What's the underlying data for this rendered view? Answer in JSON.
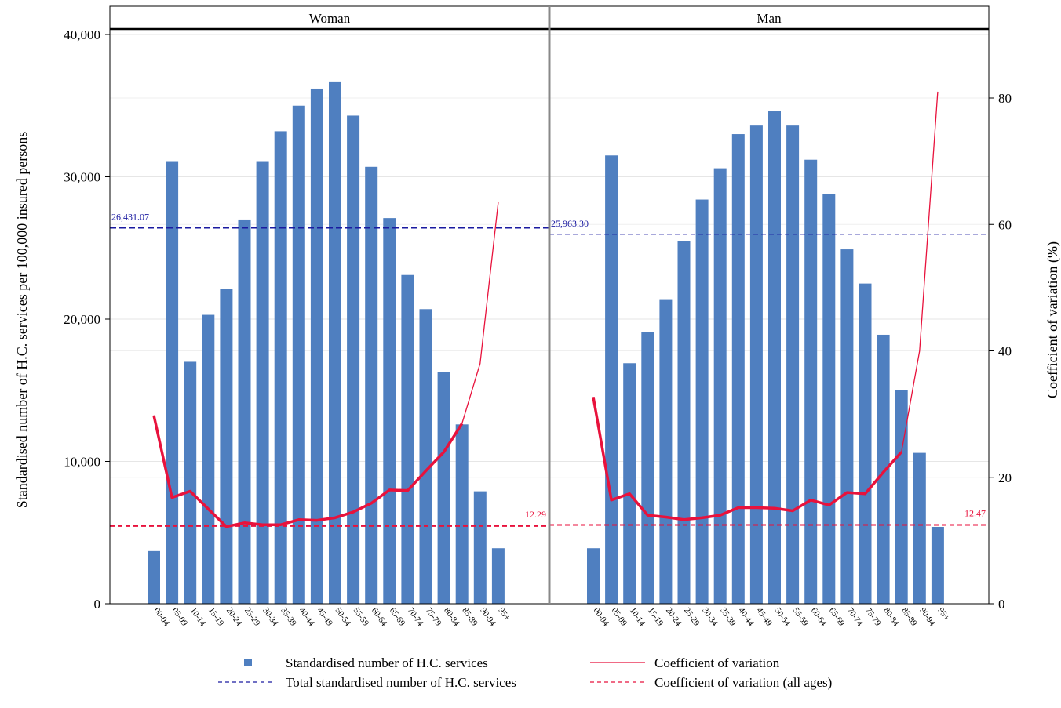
{
  "chart_data": {
    "type": "bar",
    "panels": [
      "Woman",
      "Man"
    ],
    "categories": [
      "00-04",
      "05-09",
      "10-14",
      "15-19",
      "20-24",
      "25-29",
      "30-34",
      "35-39",
      "40-44",
      "45-49",
      "50-54",
      "55-59",
      "60-64",
      "65-69",
      "70-74",
      "75-79",
      "80-84",
      "85-89",
      "90-94",
      "95+"
    ],
    "y_left": {
      "label": "Standardised number of H.C. services per 100,000 insured persons",
      "lim": [
        0,
        40000
      ],
      "ticks": [
        0,
        10000,
        20000,
        30000,
        40000
      ],
      "tick_labels": [
        "0",
        "10,000",
        "20,000",
        "30,000",
        "40,000"
      ]
    },
    "y_right": {
      "label": "Coefficient of variation (%)",
      "lim": [
        0,
        90
      ],
      "ticks": [
        0,
        20,
        40,
        60,
        80
      ],
      "tick_labels": [
        "0",
        "20",
        "40",
        "60",
        "80"
      ]
    },
    "series": [
      {
        "name": "Standardised number of H.C. services",
        "kind": "bar",
        "axis": "left",
        "color": "#4f7fc0",
        "values": {
          "Woman": [
            3700,
            31100,
            17000,
            20300,
            22100,
            27000,
            31100,
            33200,
            35000,
            36200,
            36700,
            34300,
            30700,
            27100,
            23100,
            20700,
            16300,
            12600,
            7900,
            3900
          ],
          "Man": [
            3900,
            31500,
            16900,
            19100,
            21400,
            25500,
            28400,
            30600,
            33000,
            33600,
            34600,
            33600,
            31200,
            28800,
            24900,
            22500,
            18900,
            15000,
            10600,
            5400
          ]
        }
      },
      {
        "name": "Coefficient of variation",
        "kind": "line",
        "axis": "right",
        "color": "#e8123c",
        "values": {
          "Woman": [
            29.8,
            16.8,
            17.8,
            15.0,
            12.2,
            12.8,
            12.5,
            12.5,
            13.3,
            13.2,
            13.6,
            14.5,
            15.9,
            18.0,
            17.9,
            21.0,
            24.0,
            28.5,
            38.0,
            63.5
          ],
          "Man": [
            32.7,
            16.4,
            17.4,
            14.0,
            13.7,
            13.3,
            13.6,
            14.0,
            15.2,
            15.2,
            15.1,
            14.7,
            16.4,
            15.6,
            17.6,
            17.4,
            20.8,
            24.0,
            40.0,
            81.0
          ]
        }
      }
    ],
    "reference_lines": {
      "total": {
        "name": "Total standardised number of H.C. services",
        "color": "#1a1aa0",
        "Woman": 26431.07,
        "Man": 25963.3,
        "labels": {
          "Woman": "26,431.07",
          "Man": "25,963.30"
        }
      },
      "cv_all": {
        "name": "Coefficient of variation (all ages)",
        "color": "#e8123c",
        "Woman": 12.29,
        "Man": 12.47,
        "labels": {
          "Woman": "12.29",
          "Man": "12.47"
        }
      }
    },
    "legend": {
      "placement": "bottom",
      "items": [
        {
          "label": "Standardised number of H.C. services",
          "kind": "square",
          "color": "#4f7fc0"
        },
        {
          "label": "Coefficient of variation",
          "kind": "line",
          "color": "#e8123c"
        },
        {
          "label": "Total standardised number of H.C. services",
          "kind": "dash",
          "color": "#1a1aa0"
        },
        {
          "label": "Coefficient of variation (all ages)",
          "kind": "dash",
          "color": "#e8123c"
        }
      ]
    },
    "grid": true
  }
}
